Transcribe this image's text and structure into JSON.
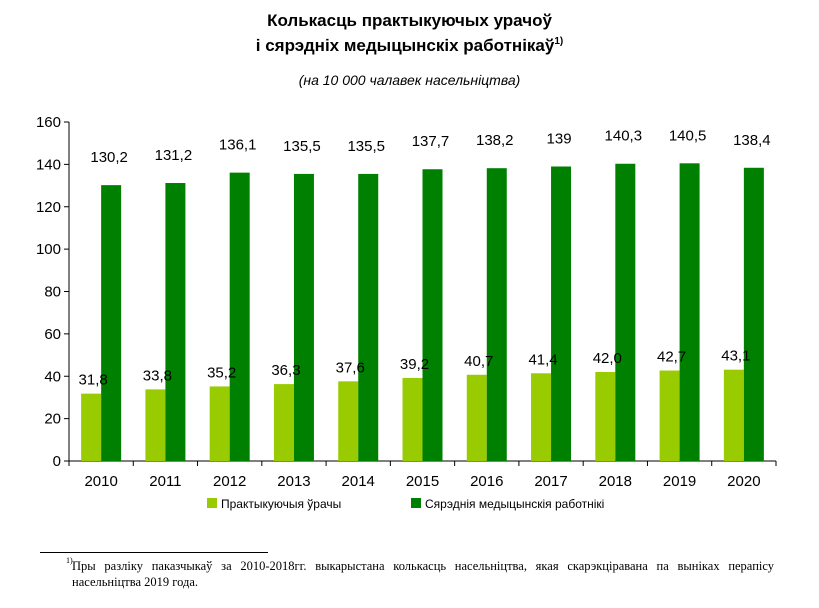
{
  "header": {
    "title_line1": "Колькасць практыкуючых урачоў",
    "title_line2": "і сярэдніх медыцынскіх работнікаў",
    "title_footnote_mark": "1)",
    "subtitle": "(на 10 000 чалавек насельніцтва)"
  },
  "chart_data": {
    "type": "bar",
    "categories": [
      "2010",
      "2011",
      "2012",
      "2013",
      "2014",
      "2015",
      "2016",
      "2017",
      "2018",
      "2019",
      "2020"
    ],
    "series": [
      {
        "name": "Практыкуючыя ўрачы",
        "color": "#99cc00",
        "values": [
          31.8,
          33.8,
          35.2,
          36.3,
          37.6,
          39.2,
          40.7,
          41.4,
          42.0,
          42.7,
          43.1
        ],
        "labels": [
          "31,8",
          "33,8",
          "35,2",
          "36,3",
          "37,6",
          "39,2",
          "40,7",
          "41,4",
          "42,0",
          "42,7",
          "43,1"
        ]
      },
      {
        "name": "Сярэднія медыцынскія работнікі",
        "color": "#008000",
        "values": [
          130.2,
          131.2,
          136.1,
          135.5,
          135.5,
          137.7,
          138.2,
          139,
          140.3,
          140.5,
          138.4
        ],
        "labels": [
          "130,2",
          "131,2",
          "136,1",
          "135,5",
          "135,5",
          "137,7",
          "138,2",
          "139",
          "140,3",
          "140,5",
          "138,4"
        ]
      }
    ],
    "ylim": [
      0,
      160
    ],
    "yticks": [
      0,
      20,
      40,
      60,
      80,
      100,
      120,
      140,
      160
    ],
    "grid": false,
    "legend": "bottom"
  },
  "footnote": {
    "mark": "1)",
    "text": "Пры разліку паказчыкаў за 2010-2018гг. выкарыстана колькасць насельніцтва, якая скарэкціравана па выніках перапісу насельніцтва 2019 года."
  }
}
